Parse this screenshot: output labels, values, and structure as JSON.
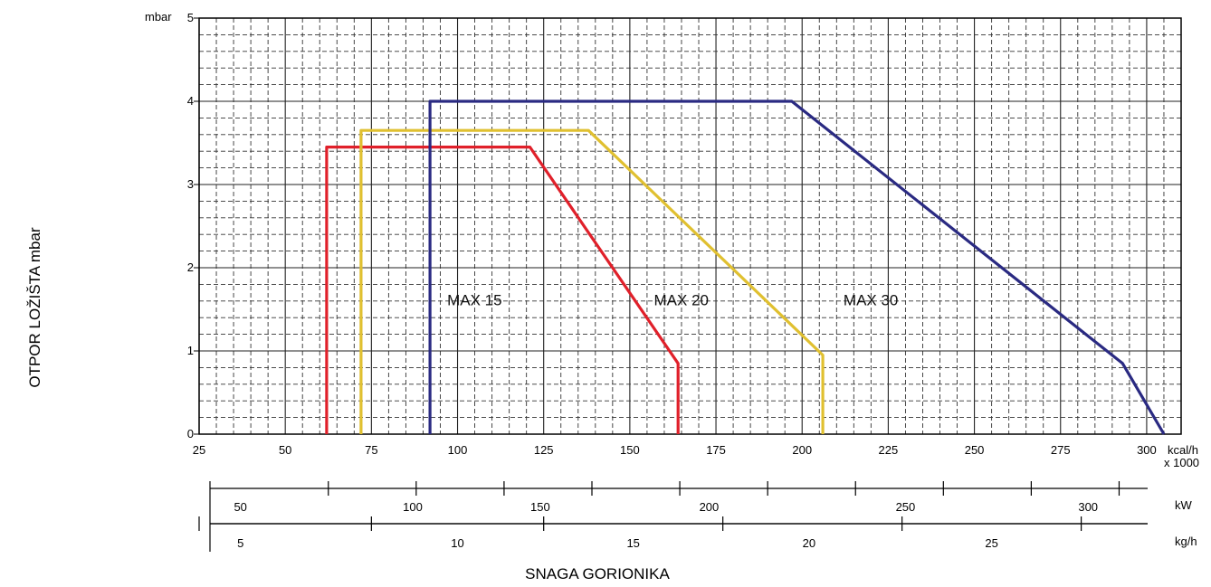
{
  "chart_data": {
    "type": "area",
    "title": "",
    "xlabel": "SNAGA GORIONIKA",
    "ylabel": "OTPOR LOŽIŠTA  mbar",
    "x_unit": "kcal/h",
    "x_unit_multiplier": "x 1000",
    "y_unit": "mbar",
    "xlim": [
      25,
      310
    ],
    "ylim": [
      0,
      5
    ],
    "x_ticks": [
      25,
      50,
      75,
      100,
      125,
      150,
      175,
      200,
      225,
      250,
      275,
      300
    ],
    "x_tick_labels": [
      "25",
      "50",
      "75",
      "100",
      "125",
      "150",
      "175",
      "200",
      "225",
      "250",
      "275",
      "300"
    ],
    "y_ticks": [
      0,
      1,
      2,
      3,
      4,
      5
    ],
    "y_tick_labels": [
      "0",
      "1",
      "2",
      "3",
      "4",
      "5"
    ],
    "grid": true,
    "secondary_axes": [
      {
        "unit": "kW",
        "ticks": [
          {
            "kcal": 62.5,
            "label": ""
          },
          {
            "kcal": 88,
            "label": ""
          },
          {
            "kcal": 113.5,
            "label": ""
          },
          {
            "kcal": 139,
            "label": ""
          },
          {
            "kcal": 164.5,
            "label": ""
          },
          {
            "kcal": 190,
            "label": ""
          },
          {
            "kcal": 215.5,
            "label": ""
          },
          {
            "kcal": 241,
            "label": ""
          },
          {
            "kcal": 266.5,
            "label": ""
          },
          {
            "kcal": 292,
            "label": ""
          }
        ],
        "labels": [
          {
            "kcal": 37,
            "label": "50"
          },
          {
            "kcal": 87,
            "label": "100"
          },
          {
            "kcal": 124,
            "label": "150"
          },
          {
            "kcal": 173,
            "label": "200"
          },
          {
            "kcal": 230,
            "label": "250"
          },
          {
            "kcal": 283,
            "label": "300"
          }
        ]
      },
      {
        "unit": "kg/h",
        "ticks": [
          {
            "kcal": 25,
            "label": ""
          },
          {
            "kcal": 75,
            "label": ""
          },
          {
            "kcal": 125,
            "label": ""
          },
          {
            "kcal": 177,
            "label": ""
          },
          {
            "kcal": 229,
            "label": ""
          },
          {
            "kcal": 281,
            "label": ""
          }
        ],
        "labels": [
          {
            "kcal": 37,
            "label": "5"
          },
          {
            "kcal": 100,
            "label": "10"
          },
          {
            "kcal": 151,
            "label": "15"
          },
          {
            "kcal": 202,
            "label": "20"
          },
          {
            "kcal": 255,
            "label": "25"
          }
        ]
      }
    ],
    "series": [
      {
        "name": "MAX 15",
        "color": "#e0202a",
        "label_at": [
          97,
          1.55
        ],
        "points": [
          [
            62,
            0
          ],
          [
            62,
            3.45
          ],
          [
            121,
            3.45
          ],
          [
            164,
            0.85
          ],
          [
            164,
            0
          ]
        ]
      },
      {
        "name": "MAX 20",
        "color": "#e0c030",
        "label_at": [
          157,
          1.55
        ],
        "points": [
          [
            72,
            0
          ],
          [
            72,
            3.65
          ],
          [
            138,
            3.65
          ],
          [
            206,
            0.95
          ],
          [
            206,
            0
          ]
        ]
      },
      {
        "name": "MAX 30",
        "color": "#2a2a82",
        "label_at": [
          212,
          1.55
        ],
        "points": [
          [
            92,
            0
          ],
          [
            92,
            4.0
          ],
          [
            197,
            4.0
          ],
          [
            293,
            0.85
          ],
          [
            305,
            0
          ]
        ]
      }
    ]
  }
}
